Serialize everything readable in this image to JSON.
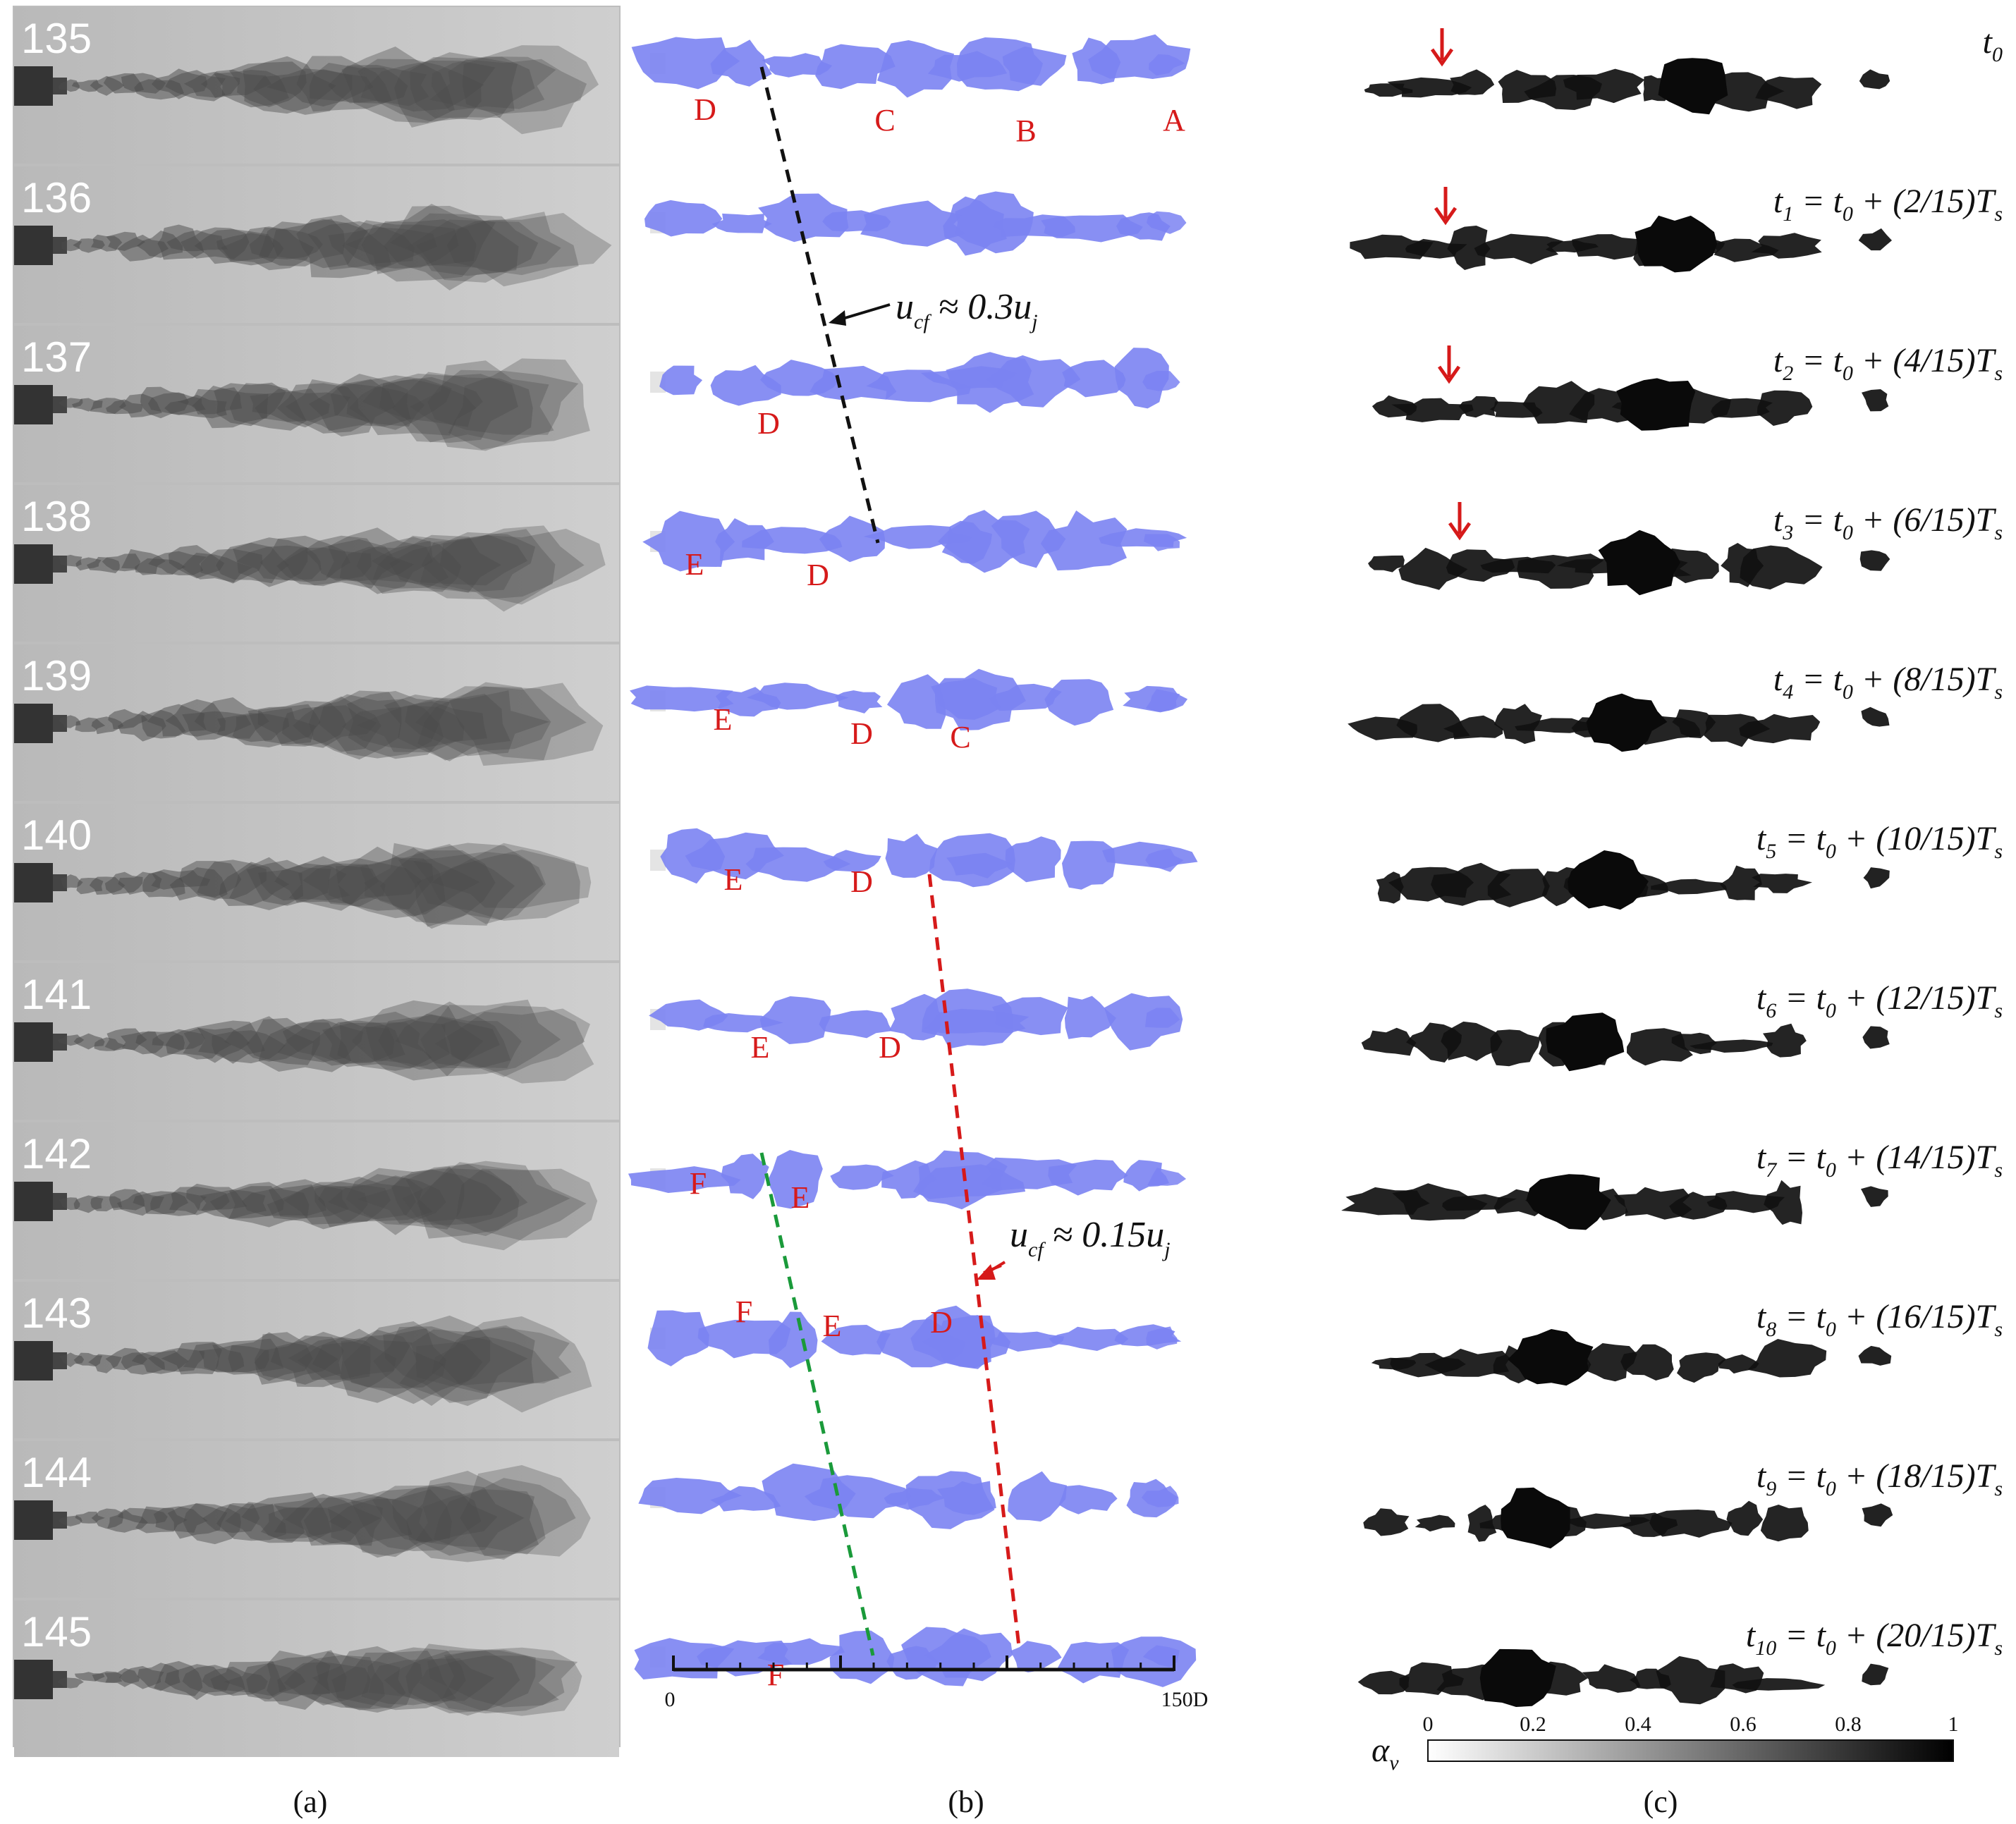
{
  "panel_a": {
    "caption": "(a)",
    "frames": [
      "135",
      "136",
      "137",
      "138",
      "139",
      "140",
      "141",
      "142",
      "143",
      "144",
      "145"
    ]
  },
  "panel_b": {
    "caption": "(b)",
    "rows": [
      [
        "D",
        "C",
        "B",
        "A"
      ],
      [],
      [
        "D"
      ],
      [
        "E",
        "D"
      ],
      [
        "E",
        "D",
        "C"
      ],
      [
        "E",
        "D"
      ],
      [
        "E",
        "D"
      ],
      [
        "F",
        "E"
      ],
      [
        "F",
        "E",
        "D"
      ],
      [],
      [
        "F"
      ]
    ],
    "annotation_fast": {
      "lhs": "u",
      "sub": "cf",
      "rhs": " ≈ 0.3u",
      "rhs_sub": "j"
    },
    "annotation_slow": {
      "lhs": "u",
      "sub": "cf",
      "rhs": " ≈ 0.15u",
      "rhs_sub": "j"
    },
    "axis": {
      "min_label": "0",
      "max_label": "150D"
    }
  },
  "panel_c": {
    "caption": "(c)",
    "times": [
      {
        "t": "t",
        "sub": "0",
        "expr": ""
      },
      {
        "t": "t",
        "sub": "1",
        "expr": " = t",
        "sub2": "0",
        "frac": " + (2/15)T",
        "sub3": "s"
      },
      {
        "t": "t",
        "sub": "2",
        "expr": " = t",
        "sub2": "0",
        "frac": " + (4/15)T",
        "sub3": "s"
      },
      {
        "t": "t",
        "sub": "3",
        "expr": " = t",
        "sub2": "0",
        "frac": " + (6/15)T",
        "sub3": "s"
      },
      {
        "t": "t",
        "sub": "4",
        "expr": " = t",
        "sub2": "0",
        "frac": " + (8/15)T",
        "sub3": "s"
      },
      {
        "t": "t",
        "sub": "5",
        "expr": " = t",
        "sub2": "0",
        "frac": " + (10/15)T",
        "sub3": "s"
      },
      {
        "t": "t",
        "sub": "6",
        "expr": " = t",
        "sub2": "0",
        "frac": " + (12/15)T",
        "sub3": "s"
      },
      {
        "t": "t",
        "sub": "7",
        "expr": " = t",
        "sub2": "0",
        "frac": " + (14/15)T",
        "sub3": "s"
      },
      {
        "t": "t",
        "sub": "8",
        "expr": " = t",
        "sub2": "0",
        "frac": " + (16/15)T",
        "sub3": "s"
      },
      {
        "t": "t",
        "sub": "9",
        "expr": " = t",
        "sub2": "0",
        "frac": " + (18/15)T",
        "sub3": "s"
      },
      {
        "t": "t",
        "sub": "10",
        "expr": " = t",
        "sub2": "0",
        "frac": " + (20/15)T",
        "sub3": "s"
      }
    ],
    "colorbar": {
      "label": "α",
      "label_sub": "v",
      "ticks": [
        "0",
        "0.2",
        "0.4",
        "0.6",
        "0.8",
        "1"
      ]
    }
  },
  "colors": {
    "blob": "#7b83f2",
    "letter": "#d61a1a",
    "dash_black": "#111111",
    "dash_red": "#d61a1a",
    "dash_green": "#1a9a3a"
  }
}
